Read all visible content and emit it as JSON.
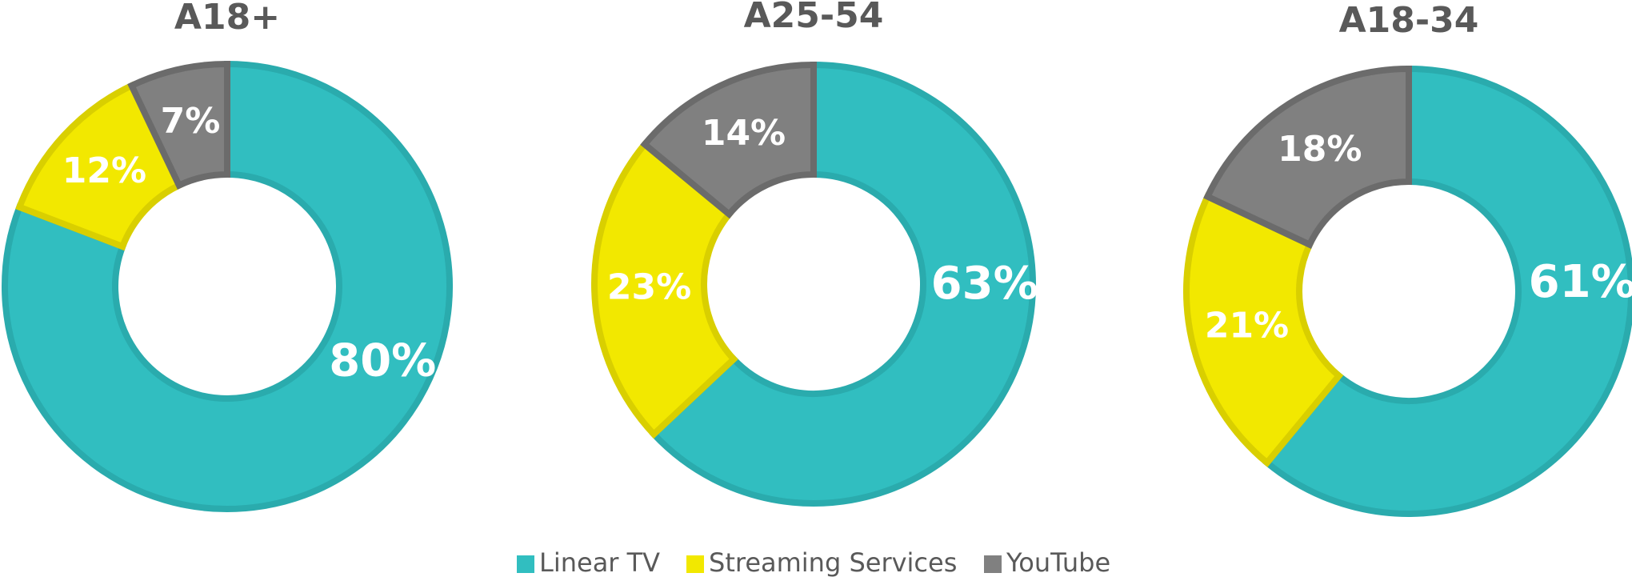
{
  "chart_data": [
    {
      "type": "donut",
      "title": "A18+",
      "categories": [
        "Linear TV",
        "Streaming Services",
        "YouTube"
      ],
      "values": [
        80,
        12,
        7
      ],
      "value_labels": [
        "80%",
        "12%",
        "7%"
      ],
      "colors": [
        "#31bec0",
        "#f2e800",
        "#808080"
      ]
    },
    {
      "type": "donut",
      "title": "A25-54",
      "categories": [
        "Linear TV",
        "Streaming Services",
        "YouTube"
      ],
      "values": [
        63,
        23,
        14
      ],
      "value_labels": [
        "63%",
        "23%",
        "14%"
      ],
      "colors": [
        "#31bec0",
        "#f2e800",
        "#808080"
      ]
    },
    {
      "type": "donut",
      "title": "A18-34",
      "categories": [
        "Linear TV",
        "Streaming Services",
        "YouTube"
      ],
      "values": [
        61,
        21,
        18
      ],
      "value_labels": [
        "61%",
        "21%",
        "18%"
      ],
      "colors": [
        "#31bec0",
        "#f2e800",
        "#808080"
      ]
    }
  ]
}
